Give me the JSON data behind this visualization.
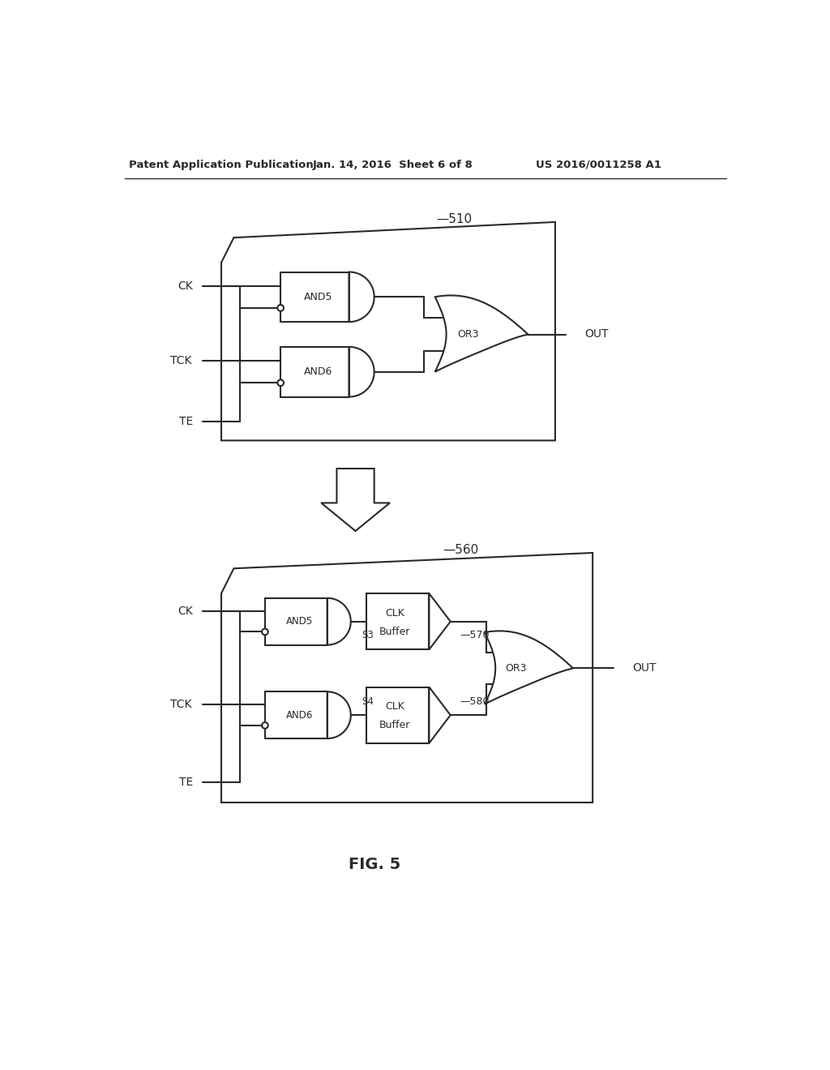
{
  "title_left": "Patent Application Publication",
  "title_mid": "Jan. 14, 2016  Sheet 6 of 8",
  "title_right": "US 2016/0011258 A1",
  "fig_label": "FIG. 5",
  "background_color": "#ffffff",
  "line_color": "#2a2a2a",
  "text_color": "#2a2a2a"
}
